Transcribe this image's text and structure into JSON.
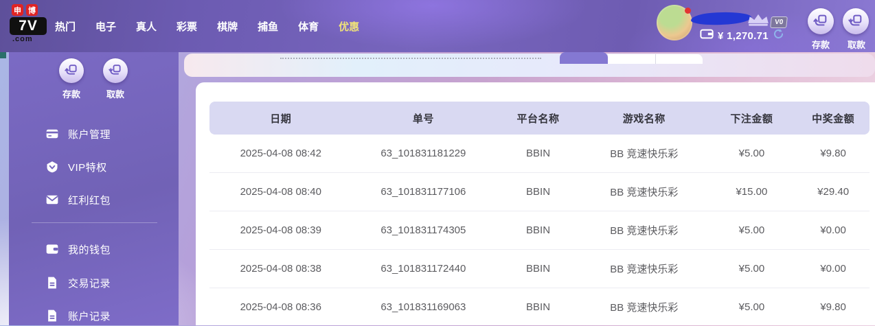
{
  "navbar": {
    "logo": {
      "badges": [
        "申",
        "博"
      ],
      "main": "7V",
      "suffix": ".com"
    },
    "items": [
      {
        "label": "热门",
        "active": false
      },
      {
        "label": "电子",
        "active": false
      },
      {
        "label": "真人",
        "active": false
      },
      {
        "label": "彩票",
        "active": false
      },
      {
        "label": "棋牌",
        "active": false
      },
      {
        "label": "捕鱼",
        "active": false
      },
      {
        "label": "体育",
        "active": false
      },
      {
        "label": "优惠",
        "active": true
      }
    ],
    "user": {
      "vip_level": "V0",
      "balance": "¥ 1,270.71"
    },
    "deposit_label": "存款",
    "withdraw_label": "取款"
  },
  "sidebar": {
    "deposit_label": "存款",
    "withdraw_label": "取款",
    "menu_top": [
      {
        "label": "账户管理",
        "icon": "bank-card-icon"
      },
      {
        "label": "VIP特权",
        "icon": "vip-shield-icon"
      },
      {
        "label": "红利红包",
        "icon": "red-packet-icon"
      }
    ],
    "menu_bottom": [
      {
        "label": "我的钱包",
        "icon": "wallet-icon"
      },
      {
        "label": "交易记录",
        "icon": "document-icon"
      },
      {
        "label": "账户记录",
        "icon": "document-icon"
      }
    ]
  },
  "main": {
    "table": {
      "headers": [
        "日期",
        "单号",
        "平台名称",
        "游戏名称",
        "下注金额",
        "中奖金额"
      ],
      "rows": [
        [
          "2025-04-08 08:42",
          "63_101831181229",
          "BBIN",
          "BB 竞速快乐彩",
          "¥5.00",
          "¥9.80"
        ],
        [
          "2025-04-08 08:40",
          "63_101831177106",
          "BBIN",
          "BB 竞速快乐彩",
          "¥15.00",
          "¥29.40"
        ],
        [
          "2025-04-08 08:39",
          "63_101831174305",
          "BBIN",
          "BB 竞速快乐彩",
          "¥5.00",
          "¥0.00"
        ],
        [
          "2025-04-08 08:38",
          "63_101831172440",
          "BBIN",
          "BB 竞速快乐彩",
          "¥5.00",
          "¥0.00"
        ],
        [
          "2025-04-08 08:36",
          "63_101831169063",
          "BBIN",
          "BB 竞速快乐彩",
          "¥5.00",
          "¥9.80"
        ]
      ]
    }
  },
  "colors": {
    "navbar_purple": "#7765bd",
    "nav_active_text": "#efe27a",
    "sidebar_purple": "#7566bd",
    "tab_active": "#8478d2",
    "table_header_bg": "#d9d9f2",
    "logo_badge_red": "#e02424",
    "balance_text": "#ffffff",
    "scribble_blue": "#2438d4"
  }
}
